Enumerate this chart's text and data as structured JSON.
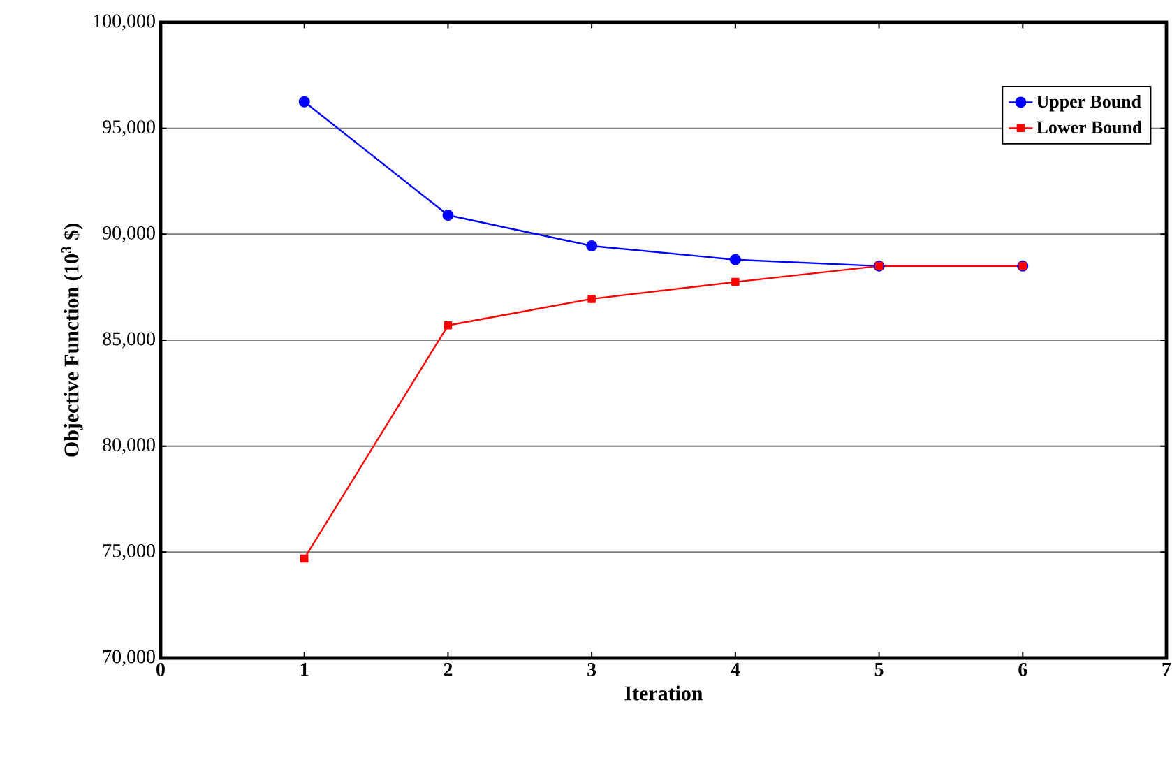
{
  "chart_data": {
    "type": "line",
    "xlabel": "Iteration",
    "ylabel": "Objective Function (10$^{3}$ $)",
    "x": [
      1,
      2,
      3,
      4,
      5,
      6
    ],
    "series": [
      {
        "name": "Upper Bound",
        "color": "#0000ff",
        "marker": "circle",
        "values": [
          96250,
          90900,
          89450,
          88800,
          88500,
          88500
        ]
      },
      {
        "name": "Lower Bound",
        "color": "#ff0000",
        "marker": "square",
        "values": [
          74700,
          85700,
          86950,
          87750,
          88500,
          88500
        ]
      }
    ],
    "xlim": [
      0,
      7
    ],
    "xticks": [
      0,
      1,
      2,
      3,
      4,
      5,
      6,
      7
    ],
    "ylim": [
      70000,
      100000
    ],
    "yticks": [
      {
        "value": 70000,
        "label": "70,000"
      },
      {
        "value": 75000,
        "label": "75,000"
      },
      {
        "value": 80000,
        "label": "80,000"
      },
      {
        "value": 85000,
        "label": "85,000"
      },
      {
        "value": 90000,
        "label": "90,000"
      },
      {
        "value": 95000,
        "label": "95,000"
      },
      {
        "value": 100000,
        "label": "100,000"
      }
    ],
    "grid": "y",
    "legend": "top right"
  }
}
